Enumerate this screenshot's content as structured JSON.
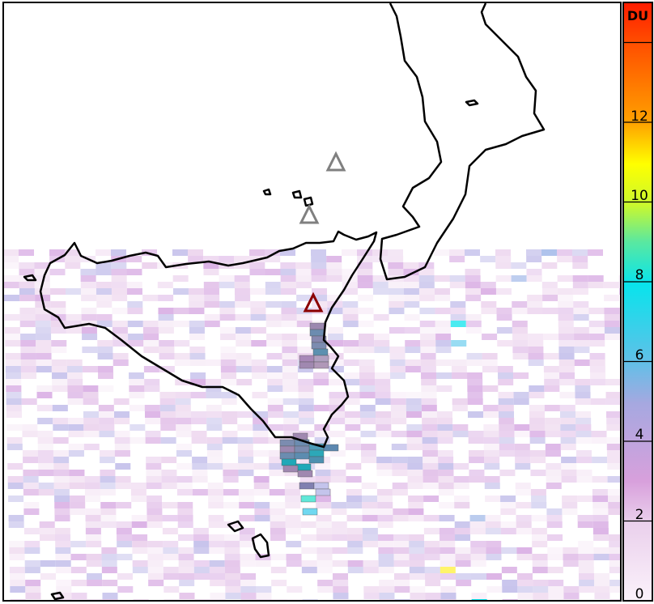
{
  "colorbar": {
    "unit": "DU",
    "ticks": [
      "0",
      "2",
      "4",
      "6",
      "8",
      "10",
      "12"
    ],
    "range": [
      0,
      15
    ],
    "colors": [
      "#ffffff",
      "#e6c8e8",
      "#d49ad8",
      "#a6a8e0",
      "#5cc0e4",
      "#08e4ec",
      "#60ec9c",
      "#c8f830",
      "#ffff00",
      "#ffa000",
      "#ff6000",
      "#ff2000"
    ]
  },
  "markers": [
    {
      "name": "volcano-stromboli",
      "color": "#808080"
    },
    {
      "name": "volcano-vulcano",
      "color": "#808080"
    },
    {
      "name": "volcano-etna",
      "color": "#8b0000"
    }
  ],
  "map": {
    "coastline_color": "#000000",
    "background": "#ffffff"
  }
}
